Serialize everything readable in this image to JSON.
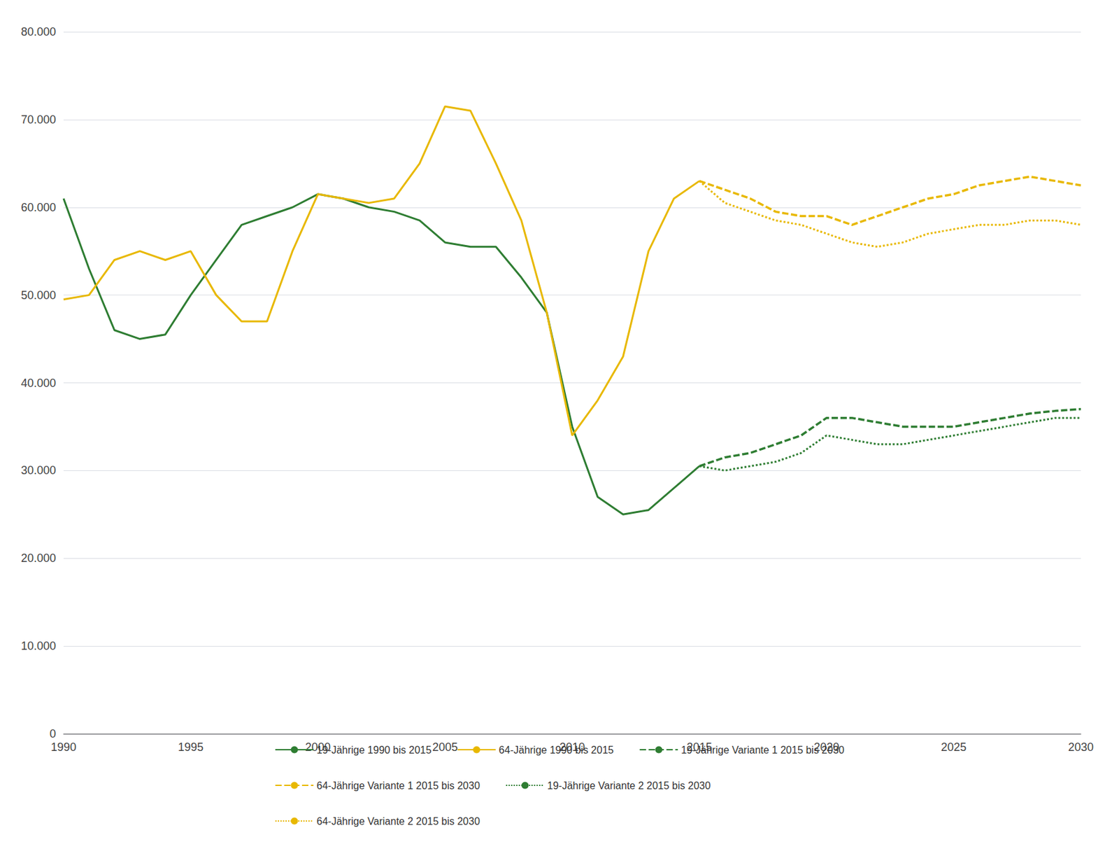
{
  "chart_data": {
    "type": "line",
    "series": [
      {
        "name": "19-Jährige 1990 bis 2015",
        "color": "#2E7D32",
        "line_style": "solid",
        "x": [
          1990,
          1991,
          1992,
          1993,
          1994,
          1995,
          1996,
          1997,
          1998,
          1999,
          2000,
          2001,
          2002,
          2003,
          2004,
          2005,
          2006,
          2007,
          2008,
          2009,
          2010,
          2011,
          2012,
          2013,
          2014,
          2015
        ],
        "values": [
          61000,
          53000,
          46000,
          45000,
          45500,
          50000,
          54000,
          58000,
          59000,
          60000,
          61500,
          61000,
          60000,
          59500,
          58500,
          56000,
          55500,
          55500,
          52000,
          48000,
          35000,
          27000,
          25000,
          25500,
          28000,
          30500
        ]
      },
      {
        "name": "64-Jährige 1990 bis 2015",
        "color": "#E8B800",
        "line_style": "solid",
        "x": [
          1990,
          1991,
          1992,
          1993,
          1994,
          1995,
          1996,
          1997,
          1998,
          1999,
          2000,
          2001,
          2002,
          2003,
          2004,
          2005,
          2006,
          2007,
          2008,
          2009,
          2010,
          2011,
          2012,
          2013,
          2014,
          2015
        ],
        "values": [
          49500,
          50000,
          54000,
          55000,
          54000,
          55000,
          50000,
          47000,
          47000,
          55000,
          61500,
          61000,
          60500,
          61000,
          65000,
          71500,
          71000,
          65000,
          58500,
          48000,
          34000,
          38000,
          43000,
          55000,
          61000,
          63000
        ]
      },
      {
        "name": "19-Jährige Variante 1 2015 bis 2030",
        "color": "#2E7D32",
        "line_style": "dashed",
        "x": [
          2015,
          2016,
          2017,
          2018,
          2019,
          2020,
          2021,
          2022,
          2023,
          2024,
          2025,
          2026,
          2027,
          2028,
          2029,
          2030
        ],
        "values": [
          30500,
          31500,
          32000,
          33000,
          34000,
          36000,
          36000,
          35500,
          35000,
          35000,
          35000,
          35500,
          36000,
          36500,
          36800,
          37000
        ]
      },
      {
        "name": "64-Jährige Variante 1 2015 bis 2030",
        "color": "#E8B800",
        "line_style": "dashed",
        "x": [
          2015,
          2016,
          2017,
          2018,
          2019,
          2020,
          2021,
          2022,
          2023,
          2024,
          2025,
          2026,
          2027,
          2028,
          2029,
          2030
        ],
        "values": [
          63000,
          62000,
          61000,
          59500,
          59000,
          59000,
          58000,
          59000,
          60000,
          61000,
          61500,
          62500,
          63000,
          63500,
          63000,
          62500
        ]
      },
      {
        "name": "19-Jährige Variante 2 2015 bis 2030",
        "color": "#2E7D32",
        "line_style": "dotted",
        "x": [
          2015,
          2016,
          2017,
          2018,
          2019,
          2020,
          2021,
          2022,
          2023,
          2024,
          2025,
          2026,
          2027,
          2028,
          2029,
          2030
        ],
        "values": [
          30500,
          30000,
          30500,
          31000,
          32000,
          34000,
          33500,
          33000,
          33000,
          33500,
          34000,
          34500,
          35000,
          35500,
          36000,
          36000
        ]
      },
      {
        "name": "64-Jährige Variante 2 2015 bis 2030",
        "color": "#E8B800",
        "line_style": "dotted",
        "x": [
          2015,
          2016,
          2017,
          2018,
          2019,
          2020,
          2021,
          2022,
          2023,
          2024,
          2025,
          2026,
          2027,
          2028,
          2029,
          2030
        ],
        "values": [
          63000,
          60500,
          59500,
          58500,
          58000,
          57000,
          56000,
          55500,
          56000,
          57000,
          57500,
          58000,
          58000,
          58500,
          58500,
          58000
        ]
      }
    ],
    "xlim": [
      1990,
      2030
    ],
    "xticks": [
      1990,
      1995,
      2000,
      2005,
      2010,
      2015,
      2020,
      2025,
      2030
    ],
    "ylim": [
      0,
      80000
    ],
    "yticks": [
      0,
      {
        "value": 10000,
        "label": "10.000"
      },
      {
        "value": 20000,
        "label": "20.000"
      },
      {
        "value": 30000,
        "label": "30.000"
      },
      {
        "value": 40000,
        "label": "40.000"
      },
      {
        "value": 50000,
        "label": "50.000"
      },
      {
        "value": 60000,
        "label": "60.000"
      },
      {
        "value": 70000,
        "label": "70.000"
      },
      {
        "value": 80000,
        "label": "80.000"
      }
    ],
    "grid": true,
    "legend": "bottom"
  }
}
